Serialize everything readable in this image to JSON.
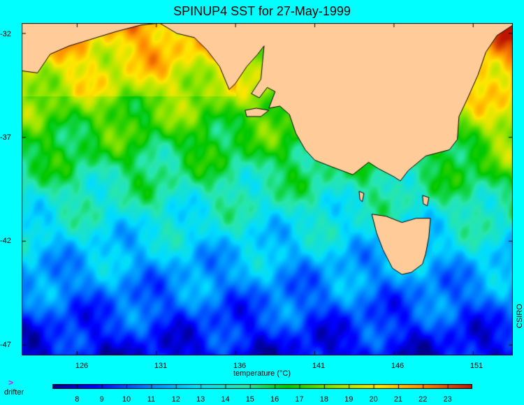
{
  "title": "SPINUP4 SST for 27-May-1999",
  "map": {
    "lon_range": [
      122.5,
      153.5
    ],
    "lat_range": [
      -47.5,
      -31.5
    ],
    "y_ticks": [
      "-32",
      "-37",
      "-42",
      "-47"
    ],
    "x_ticks": [
      "126",
      "131",
      "136",
      "141",
      "146",
      "151"
    ],
    "land_color": "#ffcc99",
    "coast_color": "#000000",
    "background_color": "#00ffff"
  },
  "colorbar": {
    "label": "temperature (°C)",
    "min": 7,
    "max": 24,
    "tick_labels": [
      "8",
      "9",
      "10",
      "11",
      "12",
      "13",
      "14",
      "15",
      "16",
      "17",
      "18",
      "19",
      "20",
      "21",
      "22",
      "23"
    ]
  },
  "legend": {
    "drifter_symbol": ">",
    "drifter_label": "drifter",
    "drifter_color": "#ff00ff"
  },
  "credit": "CSIRO"
}
